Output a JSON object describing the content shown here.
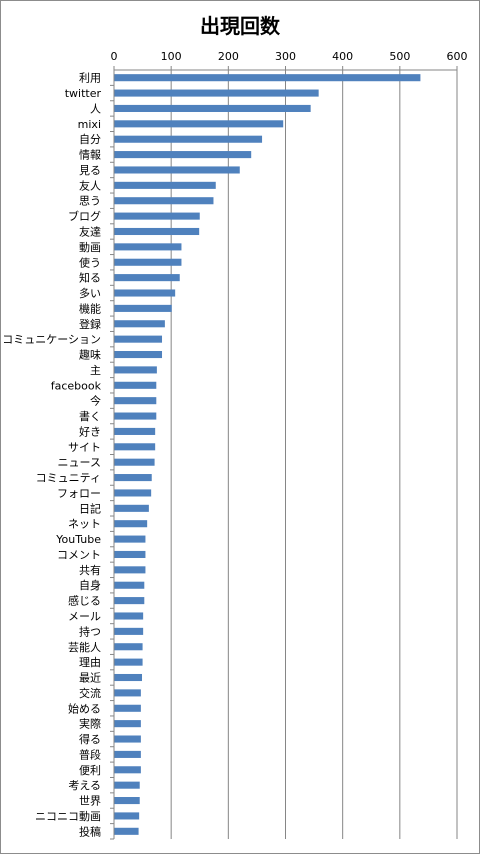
{
  "chart_data": {
    "type": "bar",
    "orientation": "horizontal",
    "title": "出現回数",
    "xlabel": "",
    "ylabel": "",
    "xlim": [
      0,
      600
    ],
    "x_ticks": [
      0,
      100,
      200,
      300,
      400,
      500,
      600
    ],
    "x_axis_position": "top",
    "grid": true,
    "legend": "none",
    "bar_color": "#4f81bd",
    "categories": [
      "利用",
      "twitter",
      "人",
      "mixi",
      "自分",
      "情報",
      "見る",
      "友人",
      "思う",
      "ブログ",
      "友達",
      "動画",
      "使う",
      "知る",
      "多い",
      "機能",
      "登録",
      "コミュニケーション",
      "趣味",
      "主",
      "facebook",
      "今",
      "書く",
      "好き",
      "サイト",
      "ニュース",
      "コミュニティ",
      "フォロー",
      "日記",
      "ネット",
      "YouTube",
      "コメント",
      "共有",
      "自身",
      "感じる",
      "メール",
      "持つ",
      "芸能人",
      "理由",
      "最近",
      "交流",
      "始める",
      "実際",
      "得る",
      "普段",
      "便利",
      "考える",
      "世界",
      "ニコニコ動画",
      "投稿"
    ],
    "values": [
      536,
      358,
      344,
      296,
      259,
      240,
      220,
      178,
      174,
      150,
      149,
      118,
      118,
      115,
      107,
      101,
      89,
      84,
      84,
      75,
      74,
      74,
      74,
      72,
      72,
      71,
      66,
      65,
      61,
      58,
      55,
      55,
      55,
      53,
      53,
      51,
      51,
      50,
      50,
      49,
      47,
      47,
      47,
      47,
      47,
      47,
      45,
      45,
      44,
      43
    ]
  }
}
